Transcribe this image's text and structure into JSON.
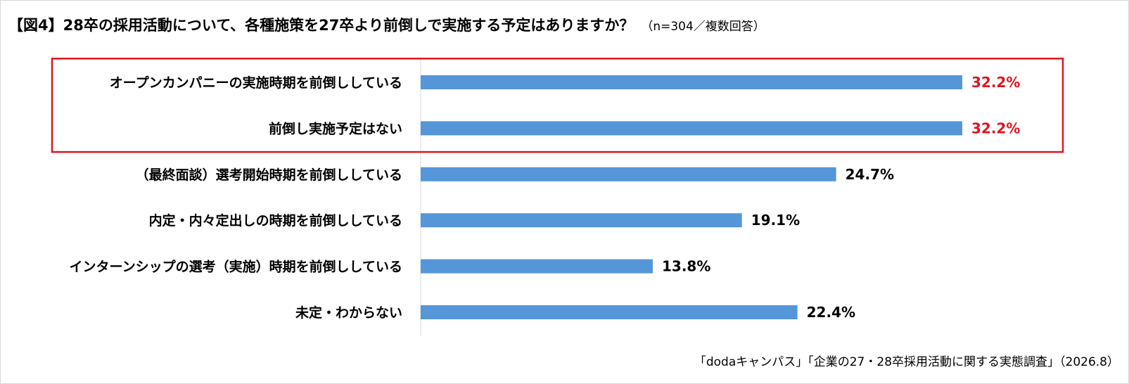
{
  "header": {
    "title": "【図4】28卒の採用活動について、各種施策を27卒より前倒しで実施する予定はありますか？",
    "subtitle": "（n=304／複数回答）"
  },
  "footer": {
    "source": "「dodaキャンパス」「企業の27・28卒採用活動に関する実態調査」（2026.8）"
  },
  "colors": {
    "bar": "#5596d9",
    "highlight": "#e0141e",
    "text": "#000000"
  },
  "chart_data": {
    "type": "bar",
    "orientation": "horizontal",
    "categories": [
      "オープンカンパニーの実施時期を前倒ししている",
      "前倒し実施予定はない",
      "（最終面談）選考開始時期を前倒ししている",
      "内定・内々定出しの時期を前倒ししている",
      "インターンシップの選考（実施）時期を前倒ししている",
      "未定・わからない"
    ],
    "values": [
      32.2,
      32.2,
      24.7,
      19.1,
      13.8,
      22.4
    ],
    "value_labels": [
      "32.2%",
      "32.2%",
      "24.7%",
      "19.1%",
      "13.8%",
      "22.4%"
    ],
    "highlighted": [
      true,
      true,
      false,
      false,
      false,
      false
    ],
    "xlim": [
      0,
      32.2
    ],
    "grid": false,
    "legend": "none"
  }
}
